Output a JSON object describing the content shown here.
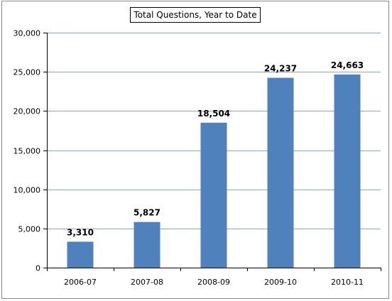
{
  "chart_data": {
    "type": "bar",
    "title": "Total Questions, Year to Date",
    "categories": [
      "2006-07",
      "2007-08",
      "2008-09",
      "2009-10",
      "2010-11"
    ],
    "values": [
      3310,
      5827,
      18504,
      24237,
      24663
    ],
    "data_labels": [
      "3,310",
      "5,827",
      "18,504",
      "24,237",
      "24,663"
    ],
    "ylim": [
      0,
      30000
    ],
    "yticks": [
      0,
      5000,
      10000,
      15000,
      20000,
      25000,
      30000
    ],
    "ytick_labels": [
      "0",
      "5,000",
      "10,000",
      "15,000",
      "20,000",
      "25,000",
      "30,000"
    ],
    "grid": true,
    "legend": "none",
    "bar_color": "#4F81BD",
    "grid_color": "#86A5CF"
  }
}
